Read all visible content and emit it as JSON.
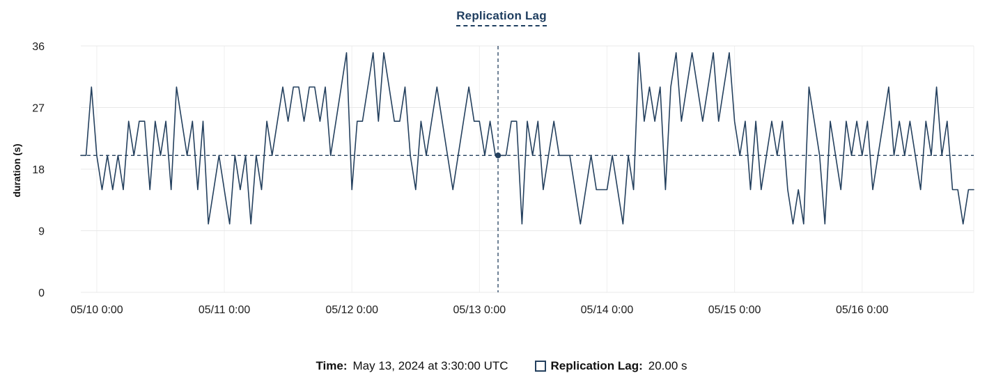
{
  "colors": {
    "series": "#24405E",
    "title": "#1E3D5F",
    "grid": "#E8E8E8",
    "grid_light": "#EFEFEF",
    "text": "#1C1C1C"
  },
  "tooltip": {
    "time_label": "Time:",
    "time_value": "May 13, 2024 at 3:30:00 UTC",
    "series_label": "Replication Lag:",
    "series_value": "20.00 s"
  },
  "chart_data": {
    "type": "line",
    "title": "Replication Lag",
    "xlabel": "",
    "ylabel": "duration (s)",
    "ylim": [
      0,
      36
    ],
    "yticks": [
      0,
      9,
      18,
      27,
      36
    ],
    "xlim": [
      -3,
      165
    ],
    "x_unit": "hours since 2024-05-10 00:00 UTC",
    "x_start_hour": -3,
    "x_step_hours": 1,
    "xticks": [
      {
        "hour": 0,
        "label": "05/10 0:00"
      },
      {
        "hour": 24,
        "label": "05/11 0:00"
      },
      {
        "hour": 48,
        "label": "05/12 0:00"
      },
      {
        "hour": 72,
        "label": "05/13 0:00"
      },
      {
        "hour": 96,
        "label": "05/14 0:00"
      },
      {
        "hour": 120,
        "label": "05/15 0:00"
      },
      {
        "hour": 144,
        "label": "05/16 0:00"
      }
    ],
    "grid": true,
    "legend_position": "bottom",
    "reference_line_y": 20,
    "crosshair": {
      "hour": 75.5,
      "value": 20,
      "time": "May 13, 2024 at 3:30:00 UTC",
      "value_label": "20.00 s"
    },
    "series": [
      {
        "name": "Replication Lag",
        "unit": "s"
      }
    ],
    "values": [
      20,
      20,
      30,
      20,
      15,
      20,
      15,
      20,
      15,
      25,
      20,
      25,
      25,
      15,
      25,
      20,
      25,
      15,
      30,
      25,
      20,
      25,
      15,
      25,
      10,
      15,
      20,
      15,
      10,
      20,
      15,
      20,
      10,
      20,
      15,
      25,
      20,
      25,
      30,
      25,
      30,
      30,
      25,
      30,
      30,
      25,
      30,
      20,
      25,
      30,
      35,
      15,
      25,
      25,
      30,
      35,
      25,
      35,
      30,
      25,
      25,
      30,
      20,
      15,
      25,
      20,
      25,
      30,
      25,
      20,
      15,
      20,
      25,
      30,
      25,
      25,
      20,
      25,
      20,
      20,
      20,
      25,
      25,
      10,
      25,
      20,
      25,
      15,
      20,
      25,
      20,
      20,
      20,
      15,
      10,
      15,
      20,
      15,
      15,
      15,
      20,
      15,
      10,
      20,
      15,
      35,
      25,
      30,
      25,
      30,
      15,
      30,
      35,
      25,
      30,
      35,
      30,
      25,
      30,
      35,
      25,
      30,
      35,
      25,
      20,
      25,
      15,
      25,
      15,
      20,
      25,
      20,
      25,
      15,
      10,
      15,
      10,
      30,
      25,
      20,
      10,
      25,
      20,
      15,
      25,
      20,
      25,
      20,
      25,
      15,
      20,
      25,
      30,
      20,
      25,
      20,
      25,
      20,
      15,
      25,
      20,
      30,
      20,
      25,
      15,
      15,
      10,
      15,
      15
    ]
  }
}
